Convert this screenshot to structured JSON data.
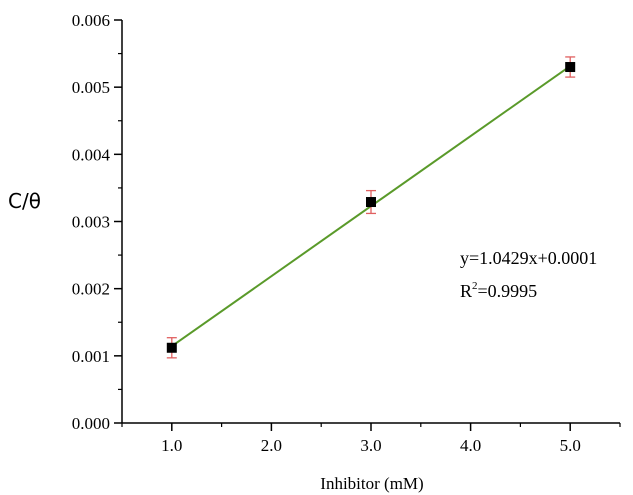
{
  "chart_data": {
    "type": "scatter",
    "xlabel": "Inhibitor (mM)",
    "ylabel": "C/θ",
    "xlim": [
      0.5,
      5.5
    ],
    "ylim": [
      0.0,
      0.006
    ],
    "x_ticks": [
      "1.0",
      "2.0",
      "3.0",
      "4.0",
      "5.0"
    ],
    "y_ticks": [
      "0.000",
      "0.001",
      "0.002",
      "0.003",
      "0.004",
      "0.005",
      "0.006"
    ],
    "grid": false,
    "series": [
      {
        "points": [
          {
            "x": 1.0,
            "y": 0.00112,
            "err": 0.00015
          },
          {
            "x": 3.0,
            "y": 0.00329,
            "err": 0.00017
          },
          {
            "x": 5.0,
            "y": 0.0053,
            "err": 0.00015
          }
        ]
      }
    ],
    "fit": {
      "slope": 0.0010429,
      "intercept": 0.0001,
      "x_range": [
        1.0,
        5.0
      ]
    },
    "annotations": [
      "y=1.0429x+0.0001",
      "R",
      "2",
      "=0.9995"
    ],
    "colors": {
      "marker": "#000000",
      "fit_line": "#5a9a2a",
      "error_bar": "#e06060",
      "axis": "#000000"
    }
  }
}
